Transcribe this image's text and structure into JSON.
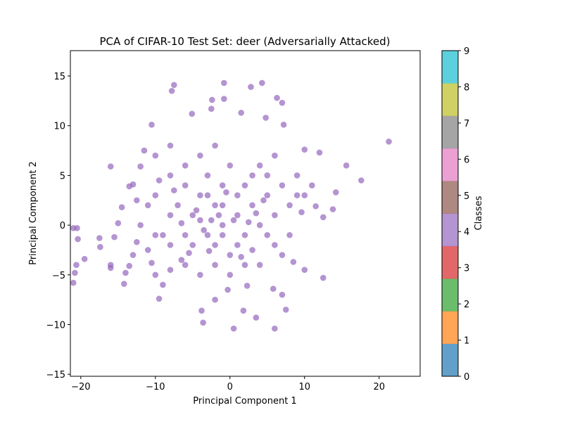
{
  "chart_data": {
    "type": "scatter",
    "title": "PCA of CIFAR-10 Test Set: deer (Adversarially Attacked)",
    "x_label": "Principal Component 1",
    "y_label": "Principal Component 2",
    "color": "#9467bd",
    "alpha": 0.7,
    "xlim": [
      -21.4,
      25.5
    ],
    "ylim": [
      -15.2,
      17.55
    ],
    "xticks": [
      {
        "value": -20,
        "label": "−20"
      },
      {
        "value": -10,
        "label": "−10"
      },
      0,
      10,
      20
    ],
    "yticks": [
      {
        "value": -15,
        "label": "−15"
      },
      {
        "value": -10,
        "label": "−10"
      },
      {
        "value": -5,
        "label": "−5"
      },
      0,
      5,
      10,
      15
    ],
    "x": [
      21.3,
      -21,
      -20.5,
      -20.4,
      -20.6,
      -20.8,
      -21,
      -19.5,
      -17.5,
      -17.4,
      -16,
      -16,
      -16,
      -14.2,
      -14,
      -13.5,
      -10.5,
      -7.5,
      -7.8,
      -0.8,
      2.8,
      4.3,
      6.3,
      7,
      -2.4,
      -0.8,
      -2.5,
      -5.1,
      1.5,
      4.8,
      7.2,
      17.6,
      15.6,
      13.8,
      14.2,
      12.5,
      10,
      7,
      6,
      3.5,
      1.8,
      0.5,
      -3.6,
      -3.8,
      -9.5,
      -9,
      -2,
      -0.3,
      2.3,
      5.8,
      7.5,
      12,
      10,
      11.5,
      12.5,
      9.6,
      8.5,
      -11.5,
      -12,
      -13,
      -13.5,
      -14.5,
      -15,
      -15.5,
      -12.5,
      -13,
      -10.5,
      -10,
      -8,
      -6.5,
      -5,
      -3,
      -1,
      1,
      3,
      5,
      -2,
      -4,
      -6,
      -8,
      -10,
      -8,
      -6,
      -4,
      -2,
      0,
      2,
      4,
      6,
      8,
      10,
      2,
      4,
      6,
      0,
      -2,
      -4,
      -6,
      -8,
      -10,
      -3,
      -1,
      1,
      3,
      5,
      7,
      9,
      8,
      6,
      4,
      2,
      0,
      -2,
      -4,
      -6,
      -8,
      -10,
      -12,
      -11,
      -9,
      -7,
      -5,
      -3,
      -1,
      1,
      3,
      5,
      7,
      -1,
      -2.5,
      -3.5,
      0.5,
      -4.5,
      -1.5,
      2.5,
      -6.5,
      -5.5,
      1.5,
      3.5,
      -0.5,
      -2.8,
      4.5,
      -7.5,
      -9.5,
      -11,
      9,
      11,
      -12.5
    ],
    "y": [
      8.4,
      -0.3,
      -0.3,
      -1.4,
      -4,
      -4.8,
      -5.8,
      -3.4,
      -1.3,
      -2.2,
      5.9,
      -4,
      -4.3,
      -5.9,
      -4.8,
      -4.1,
      10.1,
      14.1,
      13.5,
      14.3,
      13.9,
      14.3,
      12.8,
      12.3,
      12.6,
      12.7,
      11.7,
      11.2,
      11.3,
      10.8,
      10.1,
      4.5,
      6,
      1.6,
      3.3,
      -5.3,
      -4.5,
      -7,
      -10.4,
      -9.3,
      -8.6,
      -10.4,
      -9.8,
      -8.6,
      -7.4,
      -6,
      -7.5,
      -6.5,
      -6.1,
      -6.4,
      -8.5,
      7.3,
      7.6,
      1.9,
      0.8,
      1.3,
      -3.7,
      7.5,
      5.9,
      4.1,
      3.9,
      1.8,
      0.2,
      -1.2,
      -1.7,
      -3,
      -3.8,
      -5,
      -4.5,
      -3.5,
      -2,
      -1,
      0,
      1,
      2,
      3,
      2,
      3,
      4,
      5,
      3,
      1,
      -1,
      0.5,
      -2,
      -3,
      -1,
      0,
      1,
      2,
      3,
      4,
      6,
      7,
      6,
      8,
      7,
      6,
      8,
      7,
      5,
      4,
      3,
      5,
      5,
      4,
      3,
      -1,
      -2,
      -4,
      -4,
      -5,
      -4,
      -5,
      -4,
      -2,
      -1,
      0,
      2,
      -1,
      2,
      1,
      3,
      2,
      -2,
      -2.5,
      -1,
      -3,
      -1,
      0.5,
      -0.5,
      0.5,
      1.5,
      1,
      0.3,
      0.2,
      -2.8,
      -3.2,
      1.2,
      3.3,
      -2.6,
      2.5,
      3.5,
      4.5,
      -2.5,
      5,
      4,
      2.5
    ],
    "colorbar": {
      "label": "Classes",
      "lim": [
        0,
        9
      ],
      "ticks": [
        0,
        1,
        2,
        3,
        4,
        5,
        6,
        7,
        8,
        9
      ],
      "colors": [
        "#1f77b4",
        "#ff7f0e",
        "#2ca02c",
        "#d62728",
        "#9467bd",
        "#8c564b",
        "#e377c2",
        "#7f7f7f",
        "#bcbd22",
        "#17becf"
      ]
    }
  }
}
